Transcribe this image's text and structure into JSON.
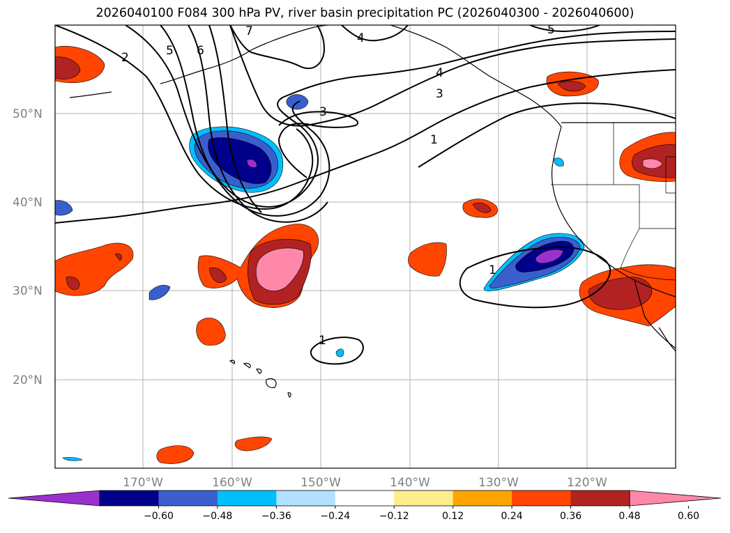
{
  "title": "2026040100 F084 300 hPa PV, river basin precipitation PC (2026040300 - 2026040600)",
  "lat_labels": [
    "50°N",
    "40°N",
    "30°N",
    "20°N"
  ],
  "lon_labels": [
    "170°W",
    "160°W",
    "150°W",
    "140°W",
    "130°W",
    "120°W"
  ],
  "colorbar": {
    "ticks": [
      "−0.60",
      "−0.48",
      "−0.36",
      "−0.24",
      "−0.12",
      "0.12",
      "0.24",
      "0.36",
      "0.48",
      "0.60"
    ],
    "colors": [
      "#9932cc",
      "#00008b",
      "#3a5fcd",
      "#00bfff",
      "#b0e2ff",
      "#ffffff",
      "#ffec8b",
      "#ffa500",
      "#ff4500",
      "#b22222",
      "#ff88aa"
    ]
  },
  "contour_labels": [
    "2",
    "5",
    "6",
    "7",
    "4",
    "5",
    "4",
    "3",
    "3",
    "1",
    "1",
    "1"
  ]
}
